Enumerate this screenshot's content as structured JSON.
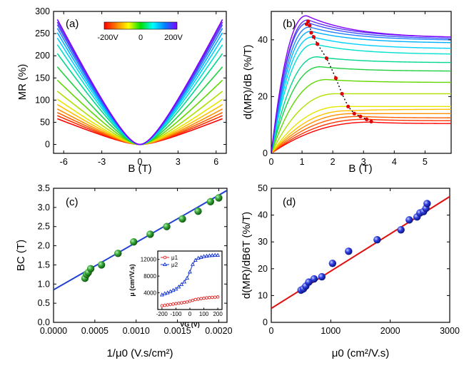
{
  "chart_data": [
    {
      "id": "a",
      "type": "line",
      "panel_label": "(a)",
      "xlabel": "B (T)",
      "ylabel": "MR (%)",
      "xlim": [
        -6.8,
        6.8
      ],
      "ylim": [
        -20,
        300
      ],
      "xticks": [
        -6,
        -3,
        0,
        3,
        6
      ],
      "xtick_labels": [
        "-6",
        "-3",
        "0",
        "3",
        "6"
      ],
      "yticks": [
        0,
        50,
        100,
        150,
        200,
        250,
        300
      ],
      "ytick_labels": [
        "0",
        "50",
        "100",
        "150",
        "200",
        "250",
        "300"
      ],
      "colorbar": {
        "labels": [
          "-200V",
          "0",
          "200V"
        ],
        "colors": [
          "#ff0000",
          "#ff8000",
          "#ffff00",
          "#00e000",
          "#00ffff",
          "#0080ff",
          "#8000ff"
        ]
      },
      "curve_shape": "MR = A * b^2 / (b0 + |b|) with A = end * (b0 + 6.5) / 42.25",
      "b0": 2.0,
      "series": [
        {
          "name": "-200V",
          "color": "#ff0000",
          "end": 58
        },
        {
          "name": "-180V",
          "color": "#ff3000",
          "end": 65
        },
        {
          "name": "-160V",
          "color": "#ff6000",
          "end": 72
        },
        {
          "name": "-140V",
          "color": "#ff9000",
          "end": 80
        },
        {
          "name": "-120V",
          "color": "#ffc000",
          "end": 90
        },
        {
          "name": "-100V",
          "color": "#e6e600",
          "end": 102
        },
        {
          "name": "-80V",
          "color": "#b0e000",
          "end": 120
        },
        {
          "name": "-60V",
          "color": "#60d800",
          "end": 145
        },
        {
          "name": "-40V",
          "color": "#20d040",
          "end": 175
        },
        {
          "name": "-20V",
          "color": "#00d890",
          "end": 205
        },
        {
          "name": "0V",
          "color": "#00e0d0",
          "end": 225
        },
        {
          "name": "20V",
          "color": "#00d0ff",
          "end": 240
        },
        {
          "name": "40V",
          "color": "#00b0ff",
          "end": 252
        },
        {
          "name": "80V",
          "color": "#2080ff",
          "end": 262
        },
        {
          "name": "120V",
          "color": "#4050ff",
          "end": 270
        },
        {
          "name": "160V",
          "color": "#6030f0",
          "end": 276
        },
        {
          "name": "200V",
          "color": "#8000ff",
          "end": 282
        }
      ]
    },
    {
      "id": "b",
      "type": "line",
      "panel_label": "(b)",
      "xlabel": "B (T)",
      "ylabel": "d(MR)/dB (%/T)",
      "xlim": [
        0,
        5.85
      ],
      "ylim": [
        0,
        50
      ],
      "xticks": [
        0,
        1,
        2,
        3,
        4,
        5
      ],
      "xtick_labels": [
        "0",
        "1",
        "2",
        "3",
        "4",
        "5"
      ],
      "yticks": [
        0,
        20,
        40
      ],
      "ytick_labels": [
        "0",
        "20",
        "40"
      ],
      "series": [
        {
          "color": "#ff0000",
          "peak": 11,
          "bc": 3.25,
          "end": 10.5
        },
        {
          "color": "#ff3000",
          "peak": 12,
          "bc": 3.1,
          "end": 11.5
        },
        {
          "color": "#ff6000",
          "peak": 13,
          "bc": 2.9,
          "end": 12.5
        },
        {
          "color": "#ff9000",
          "peak": 14,
          "bc": 2.7,
          "end": 14
        },
        {
          "color": "#ffc000",
          "peak": 15,
          "bc": 2.5,
          "end": 15.5
        },
        {
          "color": "#e6e600",
          "peak": 16.5,
          "bc": 2.3,
          "end": 16.5
        },
        {
          "color": "#b0e000",
          "peak": 21,
          "bc": 2.1,
          "end": 21
        },
        {
          "color": "#60d800",
          "peak": 26,
          "bc": 1.8,
          "end": 25
        },
        {
          "color": "#20d040",
          "peak": 30.5,
          "bc": 1.6,
          "end": 29
        },
        {
          "color": "#00d890",
          "peak": 34,
          "bc": 1.5,
          "end": 32
        },
        {
          "color": "#00e0d0",
          "peak": 38.5,
          "bc": 1.4,
          "end": 35
        },
        {
          "color": "#00d0ff",
          "peak": 41,
          "bc": 1.35,
          "end": 37
        },
        {
          "color": "#00b0ff",
          "peak": 43,
          "bc": 1.3,
          "end": 39
        },
        {
          "color": "#2080ff",
          "peak": 44.5,
          "bc": 1.25,
          "end": 40
        },
        {
          "color": "#4050ff",
          "peak": 46,
          "bc": 1.2,
          "end": 40.5
        },
        {
          "color": "#6030f0",
          "peak": 47,
          "bc": 1.2,
          "end": 41
        },
        {
          "color": "#8000ff",
          "peak": 48.5,
          "bc": 1.15,
          "end": 41
        }
      ],
      "peak_markers": {
        "color": "#e00000",
        "points": [
          [
            1.15,
            45.5
          ],
          [
            1.2,
            46.5
          ],
          [
            1.25,
            45.0
          ],
          [
            1.3,
            42.5
          ],
          [
            1.38,
            41.0
          ],
          [
            1.5,
            38.5
          ],
          [
            1.8,
            33.5
          ],
          [
            2.1,
            26.5
          ],
          [
            2.3,
            21.0
          ],
          [
            2.5,
            16.5
          ],
          [
            2.7,
            14.0
          ],
          [
            2.9,
            13.0
          ],
          [
            3.1,
            12.0
          ],
          [
            3.25,
            11.2
          ]
        ]
      }
    },
    {
      "id": "c",
      "type": "scatter",
      "panel_label": "(c)",
      "xlabel": "1/μ0 (V.s/cm²)",
      "ylabel": "BC (T)",
      "xlim": [
        0,
        0.0021
      ],
      "ylim": [
        0,
        3.5
      ],
      "xticks": [
        0,
        0.0005,
        0.001,
        0.0015,
        0.002
      ],
      "xtick_labels": [
        "0.0000",
        "0.0005",
        "0.0010",
        "0.0015",
        "0.0020"
      ],
      "yticks": [
        0,
        0.5,
        1.0,
        1.5,
        2.0,
        2.5,
        3.0,
        3.5
      ],
      "ytick_labels": [
        "0.0",
        "0.5",
        "1.0",
        "1.5",
        "2.0",
        "2.5",
        "3.0",
        "3.5"
      ],
      "points": [
        [
          0.00038,
          1.15
        ],
        [
          0.0004,
          1.25
        ],
        [
          0.00042,
          1.3
        ],
        [
          0.00045,
          1.4
        ],
        [
          0.00058,
          1.5
        ],
        [
          0.00078,
          1.8
        ],
        [
          0.00097,
          2.1
        ],
        [
          0.00117,
          2.3
        ],
        [
          0.00137,
          2.5
        ],
        [
          0.00156,
          2.7
        ],
        [
          0.00175,
          2.9
        ],
        [
          0.0019,
          3.15
        ],
        [
          0.002,
          3.25
        ]
      ],
      "point_color": "#2a9a2a",
      "fit": {
        "color": "#2040d0",
        "intercept": 0.85,
        "slope": 1235
      },
      "inset": {
        "xlabel": "VG (V)",
        "ylabel": "μ (cm²/V.s)",
        "xlim": [
          -230,
          230
        ],
        "ylim": [
          0,
          14000
        ],
        "xticks": [
          -200,
          -100,
          0,
          100,
          200
        ],
        "xtick_labels": [
          "-200",
          "-100",
          "0",
          "100",
          "200"
        ],
        "yticks": [
          4000,
          8000,
          12000
        ],
        "ytick_labels": [
          "4000",
          "8000",
          "12000"
        ],
        "legend": [
          "μ1",
          "μ2"
        ],
        "series": [
          {
            "name": "μ1",
            "color": "#e02020",
            "marker": "circle",
            "x": [
              -200,
              -180,
              -160,
              -140,
              -120,
              -100,
              -80,
              -60,
              -40,
              -20,
              0,
              20,
              40,
              60,
              80,
              100,
              120,
              140,
              160,
              180,
              200
            ],
            "y": [
              900,
              1000,
              1100,
              1200,
              1300,
              1400,
              1500,
              1600,
              1700,
              1800,
              2000,
              2200,
              2400,
              2500,
              2600,
              2700,
              2800,
              2850,
              2900,
              2950,
              3000
            ]
          },
          {
            "name": "μ2",
            "color": "#1030d0",
            "marker": "triangle",
            "x": [
              -200,
              -180,
              -160,
              -140,
              -120,
              -100,
              -80,
              -60,
              -40,
              -20,
              0,
              20,
              40,
              60,
              80,
              100,
              120,
              140,
              160,
              180,
              200
            ],
            "y": [
              3500,
              3800,
              4000,
              4300,
              4600,
              4900,
              5400,
              6000,
              6600,
              7500,
              9000,
              10800,
              11800,
              12300,
              12500,
              12700,
              12800,
              12900,
              12950,
              13000,
              13000
            ]
          }
        ]
      }
    },
    {
      "id": "d",
      "type": "scatter",
      "panel_label": "(d)",
      "xlabel": "μ0 (cm²/V.s)",
      "ylabel": "d(MR)/dB6T (%/T)",
      "xlim": [
        0,
        3000
      ],
      "ylim": [
        0,
        50
      ],
      "xticks": [
        0,
        1000,
        2000,
        3000
      ],
      "xtick_labels": [
        "0",
        "1000",
        "2000",
        "3000"
      ],
      "yticks": [
        0,
        10,
        20,
        30,
        40,
        50
      ],
      "ytick_labels": [
        "0",
        "10",
        "20",
        "30",
        "40",
        "50"
      ],
      "points": [
        [
          500,
          12
        ],
        [
          540,
          12.5
        ],
        [
          580,
          13.5
        ],
        [
          630,
          15
        ],
        [
          720,
          16.2
        ],
        [
          850,
          17
        ],
        [
          1030,
          22
        ],
        [
          1300,
          26.5
        ],
        [
          1780,
          30.8
        ],
        [
          2180,
          34.5
        ],
        [
          2320,
          38.2
        ],
        [
          2450,
          39.3
        ],
        [
          2500,
          40.8
        ],
        [
          2560,
          41.3
        ],
        [
          2600,
          42.5
        ],
        [
          2620,
          44.3
        ]
      ],
      "point_color": "#2030e0",
      "fit": {
        "color": "#e01010",
        "intercept": 5.2,
        "slope": 0.0139
      }
    }
  ]
}
